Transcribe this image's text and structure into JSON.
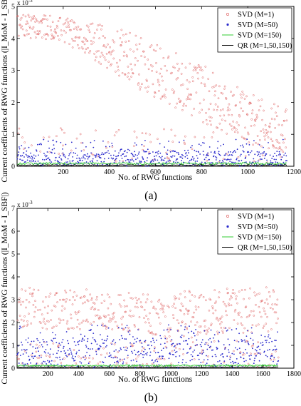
{
  "figure": {
    "caption_a": "(a)",
    "caption_b": "(b)"
  },
  "chart_data": [
    {
      "type": "scatter",
      "panel": "(a)",
      "xlabel": "No. of RWG functions",
      "ylabel": "Current coefficients of RWG functions (|I_MoM - I_SBF|)",
      "xlim": [
        0,
        1200
      ],
      "ylim": [
        0,
        0.005
      ],
      "y_multiplier_label": "x 10",
      "y_multiplier_exp": "-3",
      "x_ticks": [
        "200",
        "400",
        "600",
        "800",
        "1000",
        "1200"
      ],
      "y_ticks": [
        "0",
        "1",
        "2",
        "3",
        "4",
        "5"
      ],
      "legend": {
        "placement": "top-right",
        "entries": [
          "SVD (M=1)",
          "SVD (M=50)",
          "SVD (M=150)",
          "QR (M=1,50,150)"
        ]
      },
      "n_points": 1170,
      "series": [
        {
          "name": "SVD (M=1)",
          "color": "#e06666",
          "marker": "circle-open",
          "trend_x": [
            0,
            200,
            400,
            600,
            800,
            1000,
            1170
          ],
          "trend_y": [
            4.4,
            4.3,
            3.7,
            3.0,
            2.3,
            1.5,
            1.1
          ],
          "spread": [
            0.35,
            0.4,
            0.7,
            0.9,
            0.9,
            0.8,
            0.7
          ],
          "low_fraction": 0.15
        },
        {
          "name": "SVD (M=50)",
          "color": "#2b2bcc",
          "marker": "dot",
          "trend_x": [
            0,
            1170
          ],
          "trend_y": [
            0.22,
            0.22
          ],
          "max": 0.85
        },
        {
          "name": "SVD (M=150)",
          "color": "#33cc33",
          "marker": "line",
          "trend_x": [
            0,
            1170
          ],
          "trend_y": [
            0.05,
            0.05
          ],
          "max": 0.12
        },
        {
          "name": "QR (M=1,50,150)",
          "color": "#000000",
          "marker": "line",
          "trend_x": [
            0,
            1170
          ],
          "trend_y": [
            0.02,
            0.02
          ],
          "max": 0.05
        }
      ]
    },
    {
      "type": "scatter",
      "panel": "(b)",
      "xlabel": "No. of RWG functions",
      "ylabel": "Current coefficients of RWG functions (|I_MoM - I_SBF|)",
      "xlim": [
        0,
        1800
      ],
      "ylim": [
        0,
        0.007
      ],
      "y_multiplier_label": "x 10",
      "y_multiplier_exp": "-3",
      "x_ticks": [
        "200",
        "400",
        "600",
        "800",
        "1000",
        "1200",
        "1400",
        "1600",
        "1800"
      ],
      "y_ticks": [
        "0",
        "1",
        "2",
        "3",
        "4",
        "5",
        "6",
        "7"
      ],
      "legend": {
        "placement": "top-right",
        "entries": [
          "SVD (M=1)",
          "SVD (M=50)",
          "SVD (M=150)",
          "QR (M=1,50,150)"
        ]
      },
      "n_points": 1700,
      "series": [
        {
          "name": "SVD (M=1)",
          "color": "#e06666",
          "marker": "circle-open",
          "trend_x": [
            0,
            200,
            400,
            600,
            800,
            1000,
            1200,
            1400,
            1600,
            1700
          ],
          "trend_y": [
            2.8,
            2.5,
            2.6,
            2.5,
            2.4,
            2.3,
            2.4,
            2.5,
            2.6,
            2.5
          ],
          "spread": [
            1.0,
            0.8,
            0.9,
            0.8,
            0.9,
            1.1,
            1.0,
            1.0,
            1.0,
            0.9
          ],
          "low_fraction": 0.25
        },
        {
          "name": "SVD (M=50)",
          "color": "#2b2bcc",
          "marker": "dot",
          "trend_x": [
            0,
            1700
          ],
          "trend_y": [
            0.6,
            0.6
          ],
          "max": 1.9
        },
        {
          "name": "SVD (M=150)",
          "color": "#33cc33",
          "marker": "line",
          "trend_x": [
            0,
            1700
          ],
          "trend_y": [
            0.08,
            0.08
          ],
          "max": 0.15
        },
        {
          "name": "QR (M=1,50,150)",
          "color": "#000000",
          "marker": "line",
          "trend_x": [
            0,
            1700
          ],
          "trend_y": [
            0.03,
            0.03
          ],
          "max": 0.06
        }
      ]
    }
  ]
}
